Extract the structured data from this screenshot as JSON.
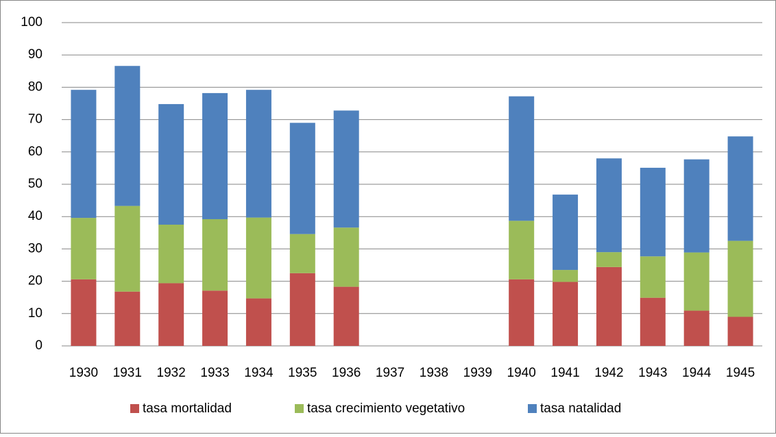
{
  "chart_data": {
    "type": "stacked_bar",
    "categories": [
      "1930",
      "1931",
      "1932",
      "1933",
      "1934",
      "1935",
      "1936",
      "1937",
      "1938",
      "1939",
      "1940",
      "1941",
      "1942",
      "1943",
      "1944",
      "1945"
    ],
    "series": [
      {
        "name": "tasa mortalidad",
        "color": "#c0504d",
        "values": [
          20.6,
          16.8,
          19.4,
          17.1,
          14.7,
          22.5,
          18.3,
          null,
          null,
          null,
          20.6,
          19.8,
          24.4,
          14.9,
          10.9,
          9.0
        ]
      },
      {
        "name": "tasa crecimiento vegetativo",
        "color": "#9bbb59",
        "values": [
          19.0,
          26.5,
          18.1,
          22.1,
          25.0,
          12.1,
          18.3,
          null,
          null,
          null,
          18.1,
          3.7,
          4.6,
          12.8,
          18.0,
          23.5
        ]
      },
      {
        "name": "tasa natalidad",
        "color": "#4f81bd",
        "values": [
          39.6,
          43.3,
          37.3,
          39.0,
          39.5,
          34.4,
          36.2,
          null,
          null,
          null,
          38.5,
          23.3,
          29.0,
          27.4,
          28.8,
          32.3
        ]
      }
    ],
    "ylim": [
      0,
      100
    ],
    "yticks": [
      0,
      10,
      20,
      30,
      40,
      50,
      60,
      70,
      80,
      90,
      100
    ],
    "grid": true,
    "legend": "bottom"
  }
}
